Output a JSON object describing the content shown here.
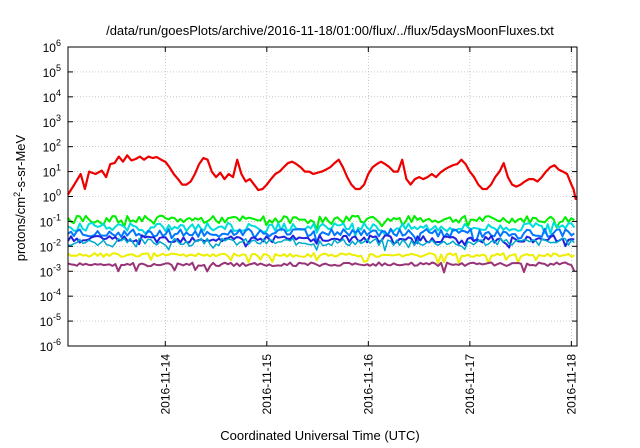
{
  "chart_data": {
    "type": "line",
    "title": "/data/run/goesPlots/archive/2016-11-18/01:00/flux/../flux/5daysMoonFluxes.txt",
    "xlabel": "Coordinated Universal Time (UTC)",
    "ylabel_parts": {
      "pre": "protons/cm",
      "sup": "2",
      "post": "-s-sr-MeV"
    },
    "y_scale": "log",
    "ylim": [
      1e-06,
      1000000.0
    ],
    "y_ticks": [
      {
        "value": -6,
        "base": "10",
        "exp": "-6"
      },
      {
        "value": -5,
        "base": "10",
        "exp": "-5"
      },
      {
        "value": -4,
        "base": "10",
        "exp": "-4"
      },
      {
        "value": -3,
        "base": "10",
        "exp": "-3"
      },
      {
        "value": -2,
        "base": "10",
        "exp": "-2"
      },
      {
        "value": -1,
        "base": "10",
        "exp": "-1"
      },
      {
        "value": 0,
        "base": "10",
        "exp": "0"
      },
      {
        "value": 1,
        "base": "10",
        "exp": "1"
      },
      {
        "value": 2,
        "base": "10",
        "exp": "2"
      },
      {
        "value": 3,
        "base": "10",
        "exp": "3"
      },
      {
        "value": 4,
        "base": "10",
        "exp": "4"
      },
      {
        "value": 5,
        "base": "10",
        "exp": "5"
      },
      {
        "value": 6,
        "base": "10",
        "exp": "6"
      }
    ],
    "xlim": [
      "2016-11-13T01:00",
      "2016-11-18T01:20"
    ],
    "x_ticks": [
      {
        "time": "2016-11-14T00:00",
        "label": "2016-11-14"
      },
      {
        "time": "2016-11-15T00:00",
        "label": "2016-11-15"
      },
      {
        "time": "2016-11-16T00:00",
        "label": "2016-11-16"
      },
      {
        "time": "2016-11-17T00:00",
        "label": "2016-11-17"
      },
      {
        "time": "2016-11-18T00:00",
        "label": "2016-11-18"
      }
    ],
    "grid": true,
    "series": [
      {
        "color": "#ee0000",
        "width": 2.2,
        "points": [
          [
            "2016-11-13T01:00",
            1.2
          ],
          [
            "2016-11-13T02:30",
            3.0
          ],
          [
            "2016-11-13T04:00",
            8.0
          ],
          [
            "2016-11-13T05:00",
            2.0
          ],
          [
            "2016-11-13T06:00",
            10
          ],
          [
            "2016-11-13T07:30",
            8
          ],
          [
            "2016-11-13T09:00",
            11
          ],
          [
            "2016-11-13T10:00",
            6
          ],
          [
            "2016-11-13T11:00",
            20
          ],
          [
            "2016-11-13T12:00",
            22
          ],
          [
            "2016-11-13T13:00",
            40
          ],
          [
            "2016-11-13T14:00",
            25
          ],
          [
            "2016-11-13T15:00",
            45
          ],
          [
            "2016-11-13T16:00",
            28
          ],
          [
            "2016-11-13T17:00",
            32
          ],
          [
            "2016-11-13T18:00",
            40
          ],
          [
            "2016-11-13T19:00",
            30
          ],
          [
            "2016-11-13T20:00",
            40
          ],
          [
            "2016-11-13T21:00",
            35
          ],
          [
            "2016-11-13T22:00",
            38
          ],
          [
            "2016-11-13T23:00",
            30
          ],
          [
            "2016-11-14T00:00",
            25
          ],
          [
            "2016-11-14T01:00",
            15
          ],
          [
            "2016-11-14T02:00",
            8
          ],
          [
            "2016-11-14T03:00",
            5
          ],
          [
            "2016-11-14T04:00",
            3
          ],
          [
            "2016-11-14T05:00",
            3
          ],
          [
            "2016-11-14T06:00",
            4
          ],
          [
            "2016-11-14T07:00",
            8
          ],
          [
            "2016-11-14T08:00",
            20
          ],
          [
            "2016-11-14T09:00",
            35
          ],
          [
            "2016-11-14T10:00",
            30
          ],
          [
            "2016-11-14T11:00",
            10
          ],
          [
            "2016-11-14T12:00",
            6
          ],
          [
            "2016-11-14T13:00",
            9
          ],
          [
            "2016-11-14T14:00",
            5
          ],
          [
            "2016-11-14T15:00",
            8
          ],
          [
            "2016-11-14T16:00",
            6
          ],
          [
            "2016-11-14T17:00",
            30
          ],
          [
            "2016-11-14T18:00",
            8
          ],
          [
            "2016-11-14T19:00",
            4
          ],
          [
            "2016-11-14T20:00",
            5
          ],
          [
            "2016-11-14T21:00",
            3
          ],
          [
            "2016-11-14T22:00",
            1.8
          ],
          [
            "2016-11-14T23:00",
            2
          ],
          [
            "2016-11-15T00:00",
            3
          ],
          [
            "2016-11-15T01:00",
            5
          ],
          [
            "2016-11-15T02:00",
            8
          ],
          [
            "2016-11-15T03:00",
            10
          ],
          [
            "2016-11-15T04:00",
            15
          ],
          [
            "2016-11-15T05:00",
            22
          ],
          [
            "2016-11-15T06:00",
            25
          ],
          [
            "2016-11-15T07:00",
            20
          ],
          [
            "2016-11-15T08:00",
            15
          ],
          [
            "2016-11-15T09:00",
            10
          ],
          [
            "2016-11-15T10:00",
            10
          ],
          [
            "2016-11-15T11:00",
            8
          ],
          [
            "2016-11-15T12:00",
            9
          ],
          [
            "2016-11-15T13:00",
            10
          ],
          [
            "2016-11-15T14:00",
            12
          ],
          [
            "2016-11-15T15:00",
            15
          ],
          [
            "2016-11-15T16:00",
            22
          ],
          [
            "2016-11-15T17:00",
            30
          ],
          [
            "2016-11-15T18:00",
            15
          ],
          [
            "2016-11-15T19:00",
            6
          ],
          [
            "2016-11-15T20:00",
            3
          ],
          [
            "2016-11-15T21:00",
            2
          ],
          [
            "2016-11-15T22:00",
            2
          ],
          [
            "2016-11-15T23:00",
            3
          ],
          [
            "2016-11-16T00:00",
            8
          ],
          [
            "2016-11-16T01:00",
            15
          ],
          [
            "2016-11-16T02:00",
            20
          ],
          [
            "2016-11-16T03:00",
            25
          ],
          [
            "2016-11-16T04:00",
            20
          ],
          [
            "2016-11-16T05:00",
            15
          ],
          [
            "2016-11-16T06:00",
            10
          ],
          [
            "2016-11-16T07:00",
            10
          ],
          [
            "2016-11-16T08:00",
            30
          ],
          [
            "2016-11-16T09:00",
            5
          ],
          [
            "2016-11-16T10:00",
            3
          ],
          [
            "2016-11-16T11:00",
            5
          ],
          [
            "2016-11-16T12:00",
            6
          ],
          [
            "2016-11-16T13:00",
            5
          ],
          [
            "2016-11-16T14:00",
            6
          ],
          [
            "2016-11-16T15:00",
            8
          ],
          [
            "2016-11-16T16:00",
            6
          ],
          [
            "2016-11-16T17:00",
            9
          ],
          [
            "2016-11-16T18:00",
            12
          ],
          [
            "2016-11-16T19:00",
            15
          ],
          [
            "2016-11-16T20:00",
            18
          ],
          [
            "2016-11-16T21:00",
            20
          ],
          [
            "2016-11-16T22:00",
            30
          ],
          [
            "2016-11-16T23:00",
            20
          ],
          [
            "2016-11-17T00:00",
            10
          ],
          [
            "2016-11-17T01:00",
            6
          ],
          [
            "2016-11-17T02:00",
            3
          ],
          [
            "2016-11-17T03:00",
            2
          ],
          [
            "2016-11-17T04:00",
            2
          ],
          [
            "2016-11-17T05:00",
            3
          ],
          [
            "2016-11-17T06:00",
            6
          ],
          [
            "2016-11-17T07:00",
            10
          ],
          [
            "2016-11-17T08:00",
            22
          ],
          [
            "2016-11-17T09:00",
            6
          ],
          [
            "2016-11-17T10:00",
            3
          ],
          [
            "2016-11-17T11:00",
            2.5
          ],
          [
            "2016-11-17T12:00",
            3
          ],
          [
            "2016-11-17T13:00",
            4
          ],
          [
            "2016-11-17T14:00",
            5
          ],
          [
            "2016-11-17T15:00",
            5
          ],
          [
            "2016-11-17T16:00",
            4
          ],
          [
            "2016-11-17T17:00",
            6
          ],
          [
            "2016-11-17T18:00",
            10
          ],
          [
            "2016-11-17T19:00",
            15
          ],
          [
            "2016-11-17T20:00",
            18
          ],
          [
            "2016-11-17T21:00",
            12
          ],
          [
            "2016-11-17T22:00",
            10
          ],
          [
            "2016-11-17T23:00",
            8
          ],
          [
            "2016-11-18T00:00",
            3
          ],
          [
            "2016-11-18T00:30",
            2
          ],
          [
            "2016-11-18T01:00",
            0.8
          ],
          [
            "2016-11-18T01:20",
            0.8
          ]
        ]
      },
      {
        "color": "#00ee00",
        "width": 2,
        "base": 0.12,
        "amp": 0.3
      },
      {
        "color": "#00dddd",
        "width": 2,
        "base": 0.06,
        "amp": 0.35
      },
      {
        "color": "#0077ff",
        "width": 2,
        "base": 0.035,
        "amp": 0.35
      },
      {
        "color": "#2222dd",
        "width": 2,
        "base": 0.02,
        "amp": 0.3
      },
      {
        "color": "#00aacc",
        "width": 1.5,
        "base": 0.015,
        "amp": 0.3
      },
      {
        "color": "#eeee00",
        "width": 2,
        "base": 0.0045,
        "amp": 0.15
      },
      {
        "color": "#993377",
        "width": 2,
        "base": 0.0019,
        "amp": 0.15
      }
    ]
  }
}
